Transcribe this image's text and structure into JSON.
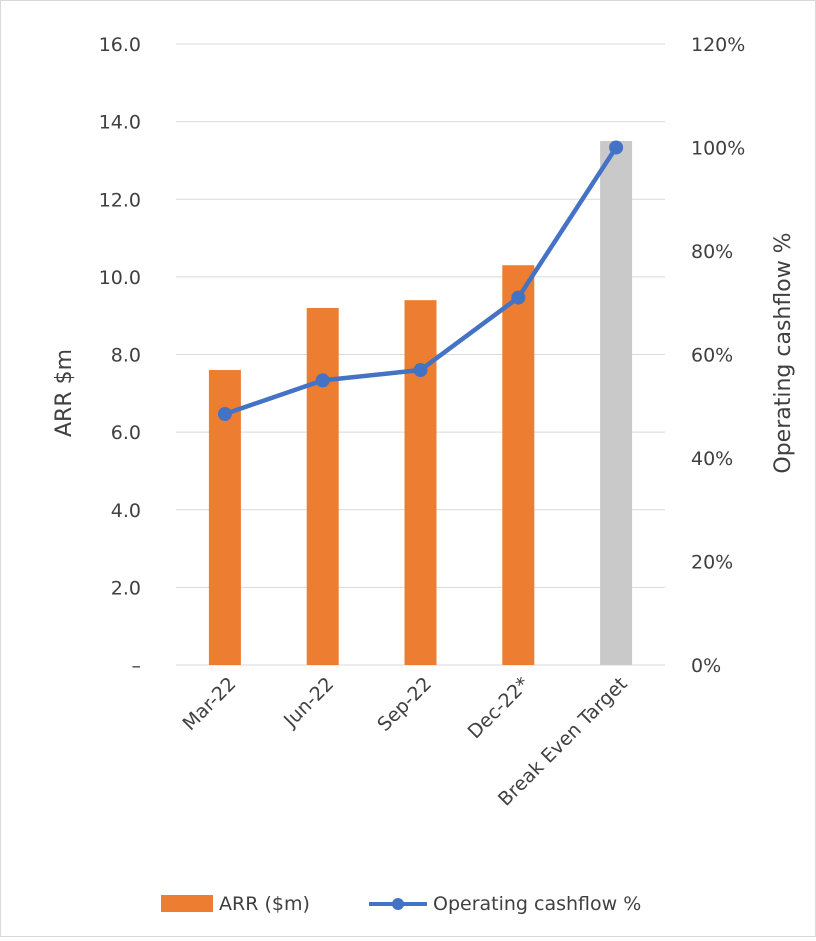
{
  "chart_data": {
    "type": "bar+line",
    "categories": [
      "Mar-22",
      "Jun-22",
      "Sep-22",
      "Dec-22*",
      "Break Even Target"
    ],
    "series": [
      {
        "name": "ARR ($m)",
        "type": "bar",
        "axis": "left",
        "values": [
          7.6,
          9.2,
          9.4,
          10.3,
          13.5
        ],
        "colors": [
          "#ED7D31",
          "#ED7D31",
          "#ED7D31",
          "#ED7D31",
          "#C9C9C9"
        ]
      },
      {
        "name": "Operating cashflow %",
        "type": "line",
        "axis": "right",
        "values": [
          48.5,
          55,
          57,
          71,
          100
        ],
        "color": "#4472C4"
      }
    ],
    "ylabel": "ARR $m",
    "y2label": "Operating cashflow %",
    "ylim": [
      0,
      16
    ],
    "y2lim": [
      0,
      120
    ],
    "yticks": [
      "–",
      "2.0",
      "4.0",
      "6.0",
      "8.0",
      "10.0",
      "12.0",
      "14.0",
      "16.0"
    ],
    "y2ticks": [
      "0%",
      "20%",
      "40%",
      "60%",
      "80%",
      "100%",
      "120%"
    ],
    "grid": true,
    "legend_position": "bottom"
  }
}
